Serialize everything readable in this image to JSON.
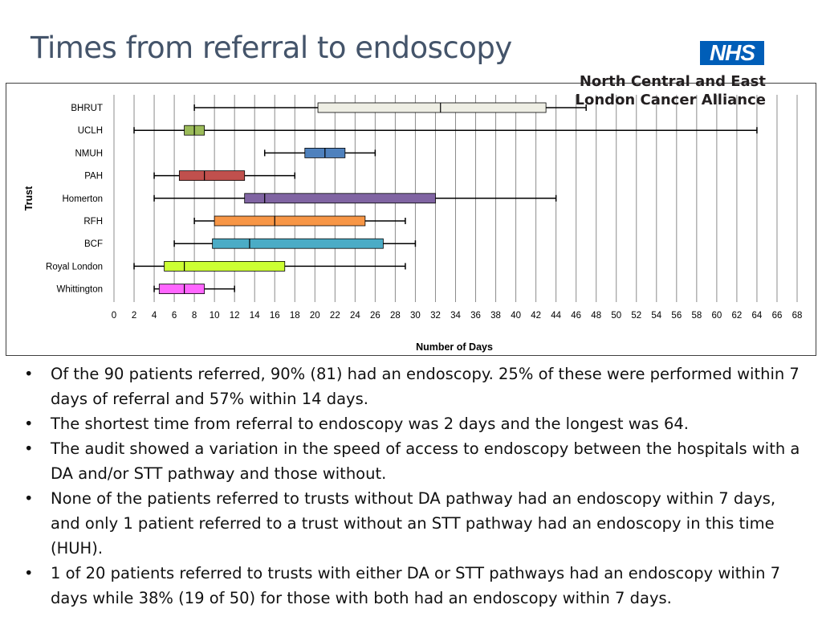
{
  "slide": {
    "title": "Times from referral to endoscopy",
    "logo_text": "NHS",
    "organization_lines": [
      "North Central and East",
      "London Cancer Alliance"
    ]
  },
  "chart_data": {
    "type": "boxplot",
    "orientation": "horizontal",
    "xlabel": "Number of Days",
    "ylabel": "Trust",
    "xlim": [
      0,
      68
    ],
    "x_ticks": [
      0,
      2,
      4,
      6,
      8,
      10,
      12,
      14,
      16,
      18,
      20,
      22,
      24,
      26,
      28,
      30,
      32,
      34,
      36,
      38,
      40,
      42,
      44,
      46,
      48,
      50,
      52,
      54,
      56,
      58,
      60,
      62,
      64,
      66,
      68
    ],
    "grid": "vertical",
    "series": [
      {
        "category": "BHRUT",
        "min": 8,
        "q1": 20.3,
        "median": 32.5,
        "q3": 43,
        "max": 47,
        "color": "#eeeee4"
      },
      {
        "category": "UCLH",
        "min": 2,
        "q1": 7,
        "median": 8,
        "q3": 9,
        "max": 64,
        "color": "#9bbb59"
      },
      {
        "category": "NMUH",
        "min": 15,
        "q1": 19,
        "median": 21,
        "q3": 23,
        "max": 26,
        "color": "#4f81bd"
      },
      {
        "category": "PAH",
        "min": 4,
        "q1": 6.5,
        "median": 9,
        "q3": 13,
        "max": 18,
        "color": "#c0504d"
      },
      {
        "category": "Homerton",
        "min": 4,
        "q1": 13,
        "median": 15,
        "q3": 32,
        "max": 44,
        "color": "#8064a2"
      },
      {
        "category": "RFH",
        "min": 8,
        "q1": 10,
        "median": 16,
        "q3": 25,
        "max": 29,
        "color": "#f79646"
      },
      {
        "category": "BCF",
        "min": 6,
        "q1": 9.8,
        "median": 13.5,
        "q3": 26.8,
        "max": 30,
        "color": "#4bacc6"
      },
      {
        "category": "Royal London",
        "min": 2,
        "q1": 5,
        "median": 7,
        "q3": 17,
        "max": 29,
        "color": "#ccff33"
      },
      {
        "category": "Whittington",
        "min": 4,
        "q1": 4.5,
        "median": 7,
        "q3": 9,
        "max": 12,
        "color": "#ff66ff"
      }
    ]
  },
  "bullets": [
    "Of the 90 patients referred, 90% (81) had an endoscopy. 25% of these were performed within 7 days of referral and 57% within 14 days.",
    "The shortest time from referral to endoscopy was 2 days and the longest was 64.",
    "The audit showed a variation in the speed of access to endoscopy between the hospitals with a DA and/or STT pathway and those without.",
    "None of the patients referred to trusts without DA pathway had an endoscopy within 7 days,  and only 1 patient referred to a trust without an STT pathway had an endoscopy in this time (HUH).",
    "1 of 20 patients referred to trusts with either DA or STT pathways had an endoscopy within 7 days while 38% (19 of 50) for those with both had an endoscopy within 7 days."
  ]
}
